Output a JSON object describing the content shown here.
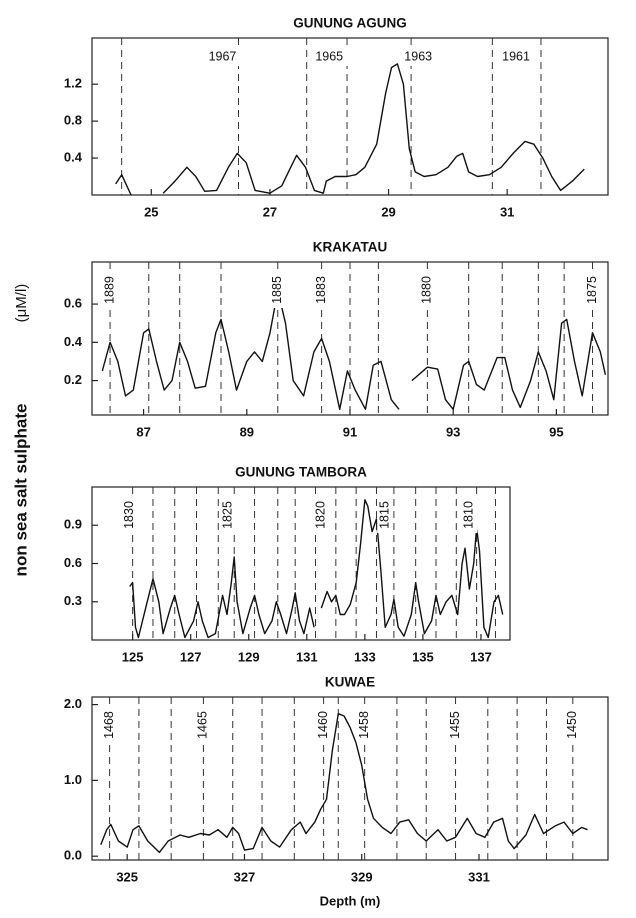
{
  "ylabel": "non sea salt sulphate",
  "yunit": "(μM/l)",
  "chart_data": [
    {
      "type": "line",
      "title": "GUNUNG AGUNG",
      "color": "#111111",
      "x": [
        24.4,
        24.5,
        24.6,
        24.66,
        25.0,
        25.2,
        25.4,
        25.6,
        25.75,
        25.9,
        26.1,
        26.3,
        26.45,
        26.6,
        26.75,
        27.0,
        27.2,
        27.35,
        27.45,
        27.6,
        27.75,
        27.9,
        27.95,
        28.1,
        28.3,
        28.45,
        28.6,
        28.8,
        28.95,
        29.05,
        29.15,
        29.25,
        29.35,
        29.45,
        29.6,
        29.8,
        30.0,
        30.15,
        30.25,
        30.35,
        30.5,
        30.7,
        30.9,
        31.1,
        31.3,
        31.45,
        31.6,
        31.75,
        31.9,
        32.1,
        32.3
      ],
      "values": [
        0.12,
        0.22,
        0.08,
        0.0,
        null,
        0.02,
        0.15,
        0.3,
        0.2,
        0.04,
        0.05,
        0.3,
        0.45,
        0.35,
        0.05,
        0.02,
        0.1,
        0.3,
        0.43,
        0.3,
        0.05,
        0.02,
        0.15,
        0.2,
        0.2,
        0.22,
        0.3,
        0.55,
        1.1,
        1.38,
        1.42,
        1.2,
        0.5,
        0.25,
        0.2,
        0.22,
        0.3,
        0.42,
        0.45,
        0.25,
        0.2,
        0.22,
        0.3,
        0.45,
        0.58,
        0.55,
        0.4,
        0.2,
        0.05,
        0.15,
        0.28
      ],
      "xlim": [
        24.0,
        32.7
      ],
      "xticks": [
        25,
        27,
        29,
        31
      ],
      "ylim": [
        0,
        1.7
      ],
      "yticks": [
        0.4,
        0.8,
        1.2
      ],
      "year_lines": [
        24.5,
        26.47,
        27.62,
        28.3,
        29.38,
        30.75,
        31.57
      ],
      "year_labels": [
        {
          "label": "1967",
          "x": 26.2
        },
        {
          "label": "1965",
          "x": 28.0
        },
        {
          "label": "1963",
          "x": 29.5
        },
        {
          "label": "1961",
          "x": 31.15
        }
      ],
      "label_rotation": 0
    },
    {
      "type": "line",
      "title": "KRAKATAU",
      "color": "#111111",
      "x": [
        86.2,
        86.35,
        86.5,
        86.65,
        86.8,
        87.0,
        87.1,
        87.25,
        87.4,
        87.55,
        87.7,
        87.85,
        88.0,
        88.2,
        88.4,
        88.5,
        88.65,
        88.8,
        89.0,
        89.15,
        89.3,
        89.45,
        89.6,
        89.75,
        89.9,
        90.1,
        90.3,
        90.45,
        90.6,
        90.8,
        90.95,
        91.1,
        91.3,
        91.45,
        91.6,
        91.8,
        91.95,
        92.1,
        92.2,
        92.5,
        92.7,
        92.85,
        93.0,
        93.2,
        93.3,
        93.45,
        93.6,
        93.85,
        94.0,
        94.15,
        94.3,
        94.5,
        94.65,
        94.8,
        94.95,
        95.1,
        95.2,
        95.35,
        95.5,
        95.7,
        95.85,
        95.95
      ],
      "values": [
        0.25,
        0.4,
        0.3,
        0.12,
        0.15,
        0.45,
        0.47,
        0.3,
        0.15,
        0.2,
        0.4,
        0.3,
        0.16,
        0.17,
        0.45,
        0.52,
        0.35,
        0.15,
        0.3,
        0.35,
        0.3,
        0.45,
        0.67,
        0.5,
        0.2,
        0.12,
        0.35,
        0.42,
        0.3,
        0.05,
        0.25,
        0.15,
        0.05,
        0.28,
        0.3,
        0.1,
        0.05,
        null,
        0.2,
        0.27,
        0.26,
        0.1,
        0.05,
        0.28,
        0.3,
        0.18,
        0.15,
        0.32,
        0.32,
        0.15,
        0.06,
        0.2,
        0.35,
        0.25,
        0.1,
        0.5,
        0.52,
        0.3,
        0.12,
        0.45,
        0.35,
        0.23
      ],
      "xlim": [
        86.0,
        96.0
      ],
      "xticks": [
        87,
        89,
        91,
        93,
        95
      ],
      "ylim": [
        0.02,
        0.82
      ],
      "yticks": [
        0.2,
        0.4,
        0.6
      ],
      "year_lines": [
        86.35,
        87.1,
        87.7,
        88.5,
        89.6,
        90.45,
        91.0,
        91.55,
        92.5,
        93.3,
        93.95,
        94.65,
        95.15,
        95.7
      ],
      "year_labels": [
        {
          "label": "1889",
          "x": 86.35
        },
        {
          "label": "1885",
          "x": 89.6
        },
        {
          "label": "1883",
          "x": 90.45
        },
        {
          "label": "1880",
          "x": 92.5
        },
        {
          "label": "1875",
          "x": 95.7
        }
      ],
      "label_rotation": 90
    },
    {
      "type": "line",
      "title": "GUNUNG TAMBORA",
      "color": "#111111",
      "x": [
        124.9,
        125.0,
        125.1,
        125.2,
        125.5,
        125.7,
        125.9,
        126.05,
        126.3,
        126.45,
        126.6,
        126.8,
        127.1,
        127.25,
        127.4,
        127.6,
        127.85,
        128.1,
        128.25,
        128.4,
        128.5,
        128.6,
        128.8,
        129.05,
        129.2,
        129.35,
        129.55,
        129.8,
        129.95,
        130.1,
        130.3,
        130.5,
        130.6,
        130.75,
        130.9,
        131.1,
        131.25,
        131.4,
        131.5,
        131.7,
        131.85,
        132.0,
        132.15,
        132.3,
        132.5,
        132.7,
        132.85,
        133.0,
        133.1,
        133.25,
        133.4,
        133.55,
        133.7,
        133.9,
        134.0,
        134.15,
        134.35,
        134.6,
        134.75,
        134.85,
        135.05,
        135.3,
        135.45,
        135.6,
        135.8,
        136.0,
        136.2,
        136.35,
        136.45,
        136.6,
        136.75,
        136.85,
        136.95,
        137.1,
        137.25,
        137.45,
        137.6,
        137.75
      ],
      "values": [
        0.42,
        0.45,
        0.1,
        0.02,
        0.3,
        0.48,
        0.3,
        0.05,
        0.25,
        0.35,
        0.2,
        0.02,
        0.15,
        0.3,
        0.15,
        0.02,
        0.05,
        0.35,
        0.2,
        0.45,
        0.65,
        0.3,
        0.05,
        0.25,
        0.35,
        0.2,
        0.05,
        0.15,
        0.3,
        0.2,
        0.05,
        0.25,
        0.37,
        0.15,
        0.05,
        0.25,
        0.1,
        null,
        0.25,
        0.38,
        0.3,
        0.35,
        0.2,
        0.2,
        0.28,
        0.45,
        0.75,
        1.1,
        1.05,
        0.85,
        0.95,
        0.55,
        0.1,
        0.2,
        0.32,
        0.1,
        0.03,
        0.2,
        0.45,
        0.3,
        0.05,
        0.15,
        0.35,
        0.2,
        0.3,
        0.35,
        0.2,
        0.6,
        0.72,
        0.4,
        0.6,
        0.88,
        0.7,
        0.1,
        0.02,
        0.3,
        0.35,
        0.2
      ],
      "xlim": [
        123.6,
        138.0
      ],
      "xticks": [
        125,
        127,
        129,
        131,
        133,
        135,
        137
      ],
      "ylim": [
        0,
        1.2
      ],
      "yticks": [
        0.3,
        0.6,
        0.9
      ],
      "year_lines": [
        125.0,
        125.7,
        126.45,
        127.2,
        127.95,
        128.5,
        129.2,
        130.0,
        130.6,
        131.3,
        132.0,
        132.7,
        133.4,
        134.0,
        134.75,
        135.45,
        136.15,
        136.85,
        137.5
      ],
      "year_labels": [
        {
          "label": "1830",
          "x": 124.9
        },
        {
          "label": "1825",
          "x": 128.3
        },
        {
          "label": "1820",
          "x": 131.5
        },
        {
          "label": "1815",
          "x": 133.7
        },
        {
          "label": "1810",
          "x": 136.6
        }
      ],
      "label_rotation": 90
    },
    {
      "type": "line",
      "title": "KUWAE",
      "color": "#111111",
      "xlabel": "Depth (m)",
      "x": [
        324.55,
        324.65,
        324.72,
        324.85,
        325.0,
        325.1,
        325.2,
        325.35,
        325.55,
        325.7,
        325.9,
        326.05,
        326.25,
        326.4,
        326.55,
        326.7,
        326.8,
        326.9,
        327.0,
        327.15,
        327.3,
        327.45,
        327.6,
        327.8,
        327.95,
        328.05,
        328.2,
        328.3,
        328.4,
        328.5,
        328.6,
        328.7,
        328.8,
        328.9,
        329.0,
        329.1,
        329.2,
        329.35,
        329.5,
        329.65,
        329.8,
        329.95,
        330.1,
        330.3,
        330.45,
        330.6,
        330.8,
        330.95,
        331.1,
        331.25,
        331.4,
        331.5,
        331.6,
        331.8,
        331.95,
        332.1,
        332.3,
        332.45,
        332.6,
        332.75,
        332.85
      ],
      "values": [
        0.15,
        0.35,
        0.42,
        0.2,
        0.12,
        0.35,
        0.4,
        0.2,
        0.05,
        0.2,
        0.28,
        0.25,
        0.3,
        0.28,
        0.35,
        0.25,
        0.38,
        0.3,
        0.08,
        0.1,
        0.38,
        0.2,
        0.12,
        0.35,
        0.45,
        0.3,
        0.45,
        0.62,
        0.75,
        1.4,
        1.88,
        1.85,
        1.7,
        1.5,
        1.2,
        0.75,
        0.5,
        0.38,
        0.3,
        0.45,
        0.48,
        0.3,
        0.2,
        0.35,
        0.2,
        0.25,
        0.5,
        0.3,
        0.25,
        0.45,
        0.5,
        0.2,
        0.1,
        0.28,
        0.55,
        0.3,
        0.4,
        0.45,
        0.3,
        0.38,
        0.35
      ],
      "xlim": [
        324.4,
        333.2
      ],
      "xticks": [
        325,
        327,
        329,
        331
      ],
      "ylim": [
        -0.05,
        2.1
      ],
      "yticks": [
        {
          "value": 0,
          "label": "0.0"
        },
        {
          "value": 1,
          "label": "1.0"
        },
        {
          "value": 2,
          "label": "2.0"
        }
      ],
      "year_lines": [
        324.7,
        325.2,
        325.75,
        326.3,
        326.8,
        327.3,
        327.85,
        328.35,
        328.6,
        329.05,
        329.6,
        330.1,
        330.6,
        331.15,
        331.65,
        332.15,
        332.6
      ],
      "year_labels": [
        {
          "label": "1468",
          "x": 324.7
        },
        {
          "label": "1465",
          "x": 326.3
        },
        {
          "label": "1460",
          "x": 328.35
        },
        {
          "label": "1458",
          "x": 329.05
        },
        {
          "label": "1455",
          "x": 330.6
        },
        {
          "label": "1450",
          "x": 332.6
        }
      ],
      "label_rotation": 90
    }
  ]
}
